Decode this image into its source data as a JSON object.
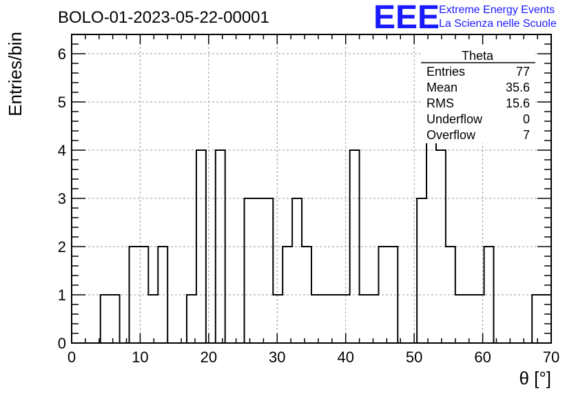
{
  "chart_data": {
    "type": "histogram",
    "title": "BOLO-01-2023-05-22-00001",
    "xlabel": "θ [°]",
    "ylabel": "Entries/bin",
    "xlim": [
      0,
      70
    ],
    "ylim": [
      0,
      6.4
    ],
    "grid": true,
    "bin_width": 1.4,
    "x_ticks": [
      0,
      10,
      20,
      30,
      40,
      50,
      60,
      70
    ],
    "y_ticks": [
      0,
      1,
      2,
      3,
      4,
      5,
      6
    ],
    "counts": [
      0,
      0,
      0,
      1,
      1,
      0,
      2,
      2,
      1,
      2,
      0,
      0,
      1,
      4,
      0,
      4,
      0,
      0,
      3,
      3,
      3,
      1,
      2,
      3,
      2,
      1,
      1,
      1,
      1,
      4,
      1,
      1,
      2,
      2,
      0,
      0,
      3,
      6,
      4,
      2,
      1,
      1,
      1,
      2,
      0,
      0,
      0,
      0,
      1,
      1
    ]
  },
  "stats_box": {
    "name": "Theta",
    "rows": [
      {
        "label": "Entries",
        "value": "77"
      },
      {
        "label": "Mean",
        "value": "35.6"
      },
      {
        "label": "RMS",
        "value": "15.6"
      },
      {
        "label": "Underflow",
        "value": "0"
      },
      {
        "label": "Overflow",
        "value": "7"
      }
    ]
  },
  "logo": {
    "mark": "EEE",
    "line1": "Extreme Energy Events",
    "line2": "La Scienza nelle Scuole"
  },
  "colors": {
    "logo": "#1a1aff",
    "line": "#000000",
    "grid": "#9a9a9a"
  }
}
